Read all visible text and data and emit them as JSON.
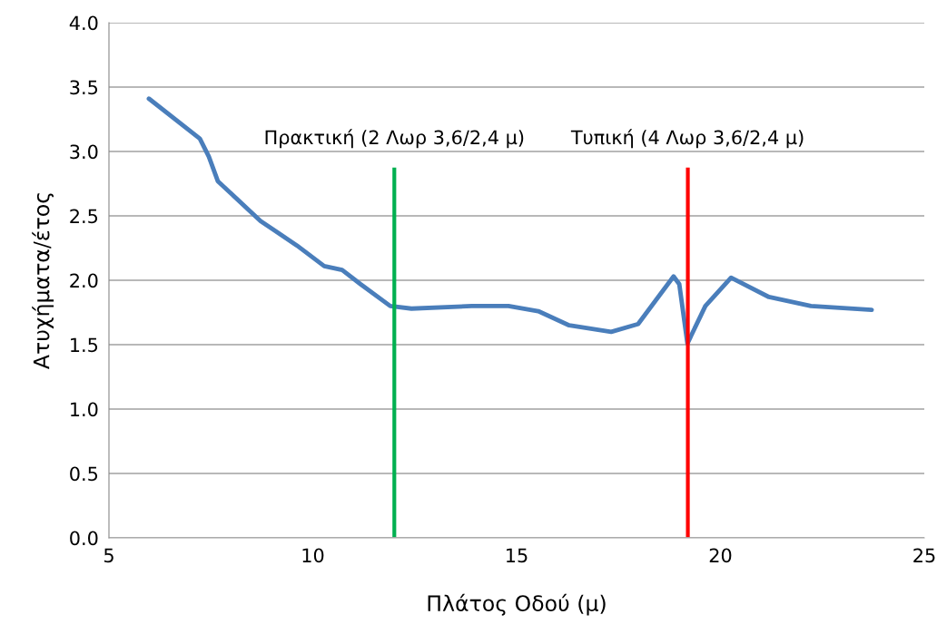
{
  "chart_data": {
    "type": "line",
    "xlabel": "Πλάτος Οδού (μ)",
    "ylabel": "Ατυχήματα/έτος",
    "x": [
      5.98,
      7.23,
      7.45,
      7.67,
      8.72,
      9.61,
      10.28,
      10.72,
      11.17,
      11.9,
      12.42,
      13.9,
      14.8,
      15.53,
      16.29,
      17.32,
      17.98,
      18.85,
      18.99,
      19.19,
      19.63,
      20.26,
      21.19,
      22.22,
      23.71
    ],
    "series": [
      {
        "color": "#4a7ebb",
        "values": [
          3.41,
          3.1,
          2.96,
          2.77,
          2.46,
          2.27,
          2.11,
          2.08,
          1.97,
          1.8,
          1.78,
          1.8,
          1.8,
          1.76,
          1.65,
          1.6,
          1.66,
          2.03,
          1.97,
          1.51,
          1.8,
          2.02,
          1.87,
          1.8,
          1.77
        ]
      }
    ],
    "xlim": [
      5,
      25
    ],
    "xticks": [
      5,
      10,
      15,
      20,
      25
    ],
    "ylim": [
      0,
      4
    ],
    "yticks": [
      {
        "value": 0,
        "label": "0.0"
      },
      {
        "value": 0.5,
        "label": "0.5"
      },
      {
        "value": 1,
        "label": "1.0"
      },
      {
        "value": 1.5,
        "label": "1.5"
      },
      {
        "value": 2,
        "label": "2.0"
      },
      {
        "value": 2.5,
        "label": "2.5"
      },
      {
        "value": 3,
        "label": "3.0"
      },
      {
        "value": 3.5,
        "label": "3.5"
      },
      {
        "value": 4,
        "label": "4.0"
      }
    ],
    "grid": "y",
    "marker": "none",
    "line_style": "solid",
    "ref_lines": [
      {
        "axis": "x",
        "value": 12.0,
        "label": "Πρακτική (2 Λωρ 3,6/2,4 μ)",
        "color": "#00b050"
      },
      {
        "axis": "x",
        "value": 19.2,
        "label": "Τυπική (4 Λωρ 3,6/2,4 μ)",
        "color": "#ff0000"
      }
    ]
  }
}
